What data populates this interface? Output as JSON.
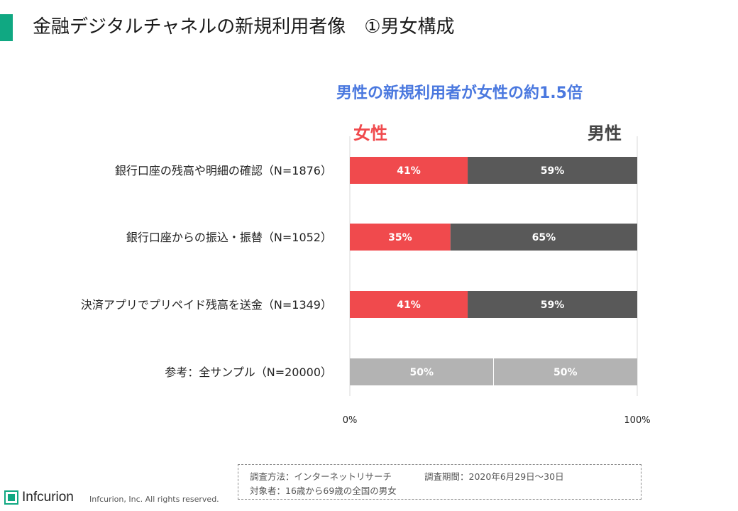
{
  "header": {
    "title": "金融デジタルチャネルの新規利用者像　①男女構成",
    "accent_color": "#10a882"
  },
  "headline": "男性の新規利用者が女性の約1.5倍",
  "legend": {
    "female": "女性",
    "male": "男性"
  },
  "colors": {
    "female": "#f04a4d",
    "male": "#595959",
    "reference": "#b3b3b3",
    "headline": "#4a78df"
  },
  "chart_data": {
    "type": "bar",
    "orientation": "horizontal",
    "stacked": true,
    "percent_stacked": true,
    "categories": [
      "銀行口座の残高や明細の確認（N=1876）",
      "銀行口座からの振込・振替（N=1052）",
      "決済アプリでプリペイド残高を送金（N=1349）",
      "参考：全サンプル（N=20000）"
    ],
    "series": [
      {
        "name": "女性",
        "values": [
          41,
          35,
          41,
          50
        ],
        "labels": [
          "41%",
          "35%",
          "41%",
          "50%"
        ]
      },
      {
        "name": "男性",
        "values": [
          59,
          65,
          59,
          50
        ],
        "labels": [
          "59%",
          "65%",
          "59%",
          "50%"
        ]
      }
    ],
    "xlim": [
      0,
      100
    ],
    "x_ticks": [
      "0%",
      "100%"
    ],
    "grid": false,
    "legend_position": "top"
  },
  "notes": {
    "method": "調査方法：インターネットリサーチ",
    "period": "調査期間：2020年6月29日～30日",
    "target": "対象者：16歳から69歳の全国の男女"
  },
  "footer": {
    "logo_text": "Infcurion",
    "logo_icon": "infcurion-logo-icon",
    "copyright": "Infcurion, Inc.  All rights reserved."
  }
}
